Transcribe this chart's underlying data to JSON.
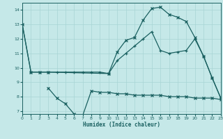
{
  "xlabel": "Humidex (Indice chaleur)",
  "bg_color": "#c5e8e8",
  "grid_color": "#a8d4d4",
  "line_color": "#1a6060",
  "xlim": [
    0,
    23
  ],
  "ylim": [
    6.8,
    14.5
  ],
  "yticks": [
    7,
    8,
    9,
    10,
    11,
    12,
    13,
    14
  ],
  "xticks": [
    0,
    1,
    2,
    3,
    4,
    5,
    6,
    7,
    8,
    9,
    10,
    11,
    12,
    13,
    14,
    15,
    16,
    17,
    18,
    19,
    20,
    21,
    22,
    23
  ],
  "line1_x": [
    0,
    1,
    2,
    3,
    10,
    11,
    12,
    13,
    14,
    15,
    16,
    17,
    18,
    19,
    20,
    21,
    22,
    23
  ],
  "line1_y": [
    13.0,
    9.7,
    9.7,
    9.7,
    9.6,
    11.1,
    11.9,
    12.1,
    13.3,
    14.1,
    14.2,
    13.7,
    13.5,
    13.2,
    12.1,
    10.8,
    9.3,
    7.9
  ],
  "line2_x": [
    0,
    1,
    2,
    3,
    4,
    5,
    6,
    7,
    8,
    9,
    10,
    11,
    12,
    13,
    14,
    15,
    16,
    17,
    18,
    19,
    20,
    21,
    22,
    23
  ],
  "line2_y": [
    13.0,
    9.7,
    9.7,
    9.7,
    9.7,
    9.7,
    9.7,
    9.7,
    9.7,
    9.7,
    9.6,
    10.5,
    11.0,
    11.5,
    12.0,
    12.5,
    11.2,
    11.0,
    11.1,
    11.2,
    12.0,
    10.8,
    9.3,
    7.9
  ],
  "line3_x": [
    3,
    4,
    5,
    6,
    7,
    8,
    9,
    10,
    11,
    12,
    13,
    14,
    15,
    16,
    17,
    18,
    19,
    20,
    21,
    22,
    23
  ],
  "line3_y": [
    8.6,
    7.9,
    7.5,
    6.8,
    6.7,
    8.4,
    8.3,
    8.3,
    8.2,
    8.2,
    8.1,
    8.1,
    8.1,
    8.1,
    8.0,
    8.0,
    8.0,
    7.9,
    7.9,
    7.9,
    7.8
  ]
}
